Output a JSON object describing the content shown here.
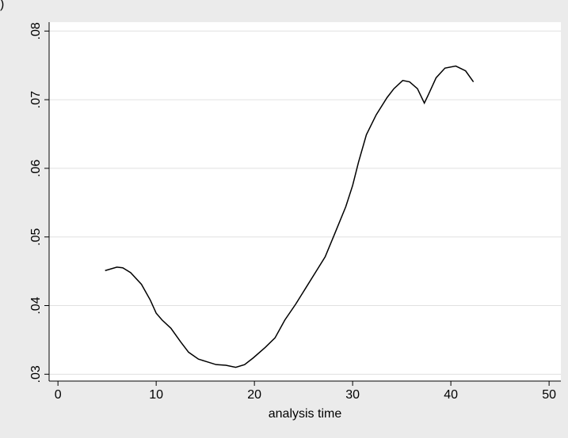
{
  "chart_data": {
    "type": "line",
    "title": ")",
    "xlabel": "analysis time",
    "x": [
      4.8,
      6.0,
      6.6,
      7.4,
      8.5,
      9.4,
      10.0,
      10.6,
      11.5,
      12.5,
      13.3,
      14.3,
      15.2,
      16.1,
      17.1,
      18.1,
      19.0,
      19.9,
      21.1,
      22.1,
      23.1,
      24.2,
      25.2,
      26.2,
      27.2,
      28.1,
      29.3,
      30.0,
      30.6,
      31.4,
      32.4,
      33.5,
      34.2,
      35.1,
      35.8,
      36.6,
      37.3,
      37.7,
      38.5,
      39.4,
      40.5,
      41.5,
      42.3
    ],
    "series": [
      {
        "color": "#000000",
        "values": [
          0.0451,
          0.0456,
          0.0455,
          0.0448,
          0.0431,
          0.0408,
          0.0389,
          0.0379,
          0.0367,
          0.0347,
          0.0332,
          0.0322,
          0.0318,
          0.0314,
          0.0313,
          0.031,
          0.0314,
          0.0324,
          0.0339,
          0.0353,
          0.0379,
          0.0402,
          0.0425,
          0.0448,
          0.0471,
          0.0502,
          0.0544,
          0.0575,
          0.0609,
          0.0649,
          0.0678,
          0.0703,
          0.0716,
          0.0728,
          0.0726,
          0.0716,
          0.0695,
          0.0707,
          0.0732,
          0.0746,
          0.0749,
          0.0742,
          0.0726
        ]
      }
    ],
    "xlim": [
      -0.9,
      51.2
    ],
    "xticks": [
      0,
      10,
      20,
      30,
      40,
      50
    ],
    "ylim": [
      0.029,
      0.0813
    ],
    "yticks": [
      {
        "value": 0.03,
        "label": ".03"
      },
      {
        "value": 0.04,
        "label": ".04"
      },
      {
        "value": 0.05,
        "label": ".05"
      },
      {
        "value": 0.06,
        "label": ".06"
      },
      {
        "value": 0.07,
        "label": ".07"
      },
      {
        "value": 0.08,
        "label": ".08"
      }
    ],
    "grid": true
  }
}
